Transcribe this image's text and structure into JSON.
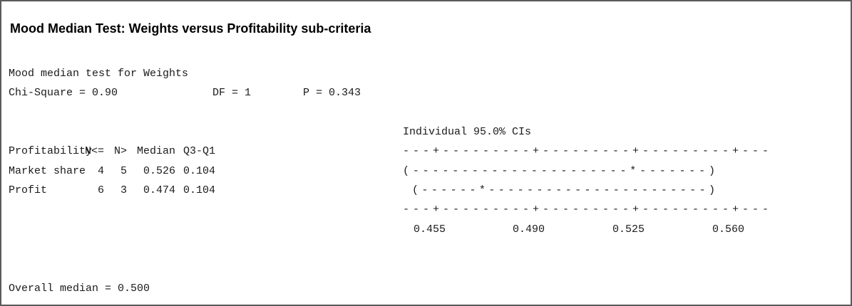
{
  "title": "Mood Median Test: Weights versus Profitability sub-criteria",
  "test": "Mood median test for Weights",
  "statistics": [
    "Chi-Square = 0.90",
    "DF = 1",
    "P = 0.343"
  ],
  "ci_heading": "Individual 95.0% CIs",
  "table": {
    "columns": [
      "Profitability",
      "N<=",
      "N>",
      "Median",
      "Q3-Q1"
    ],
    "rows": [
      [
        "Market share",
        "4",
        "5",
        "0.526",
        "0.104"
      ],
      [
        "Profit",
        "6",
        "3",
        "0.474",
        "0.104"
      ]
    ]
  },
  "ci_plot": {
    "axis_top": "---+---------+---------+---------+---",
    "rows": [
      "(----------------------*-------)",
      "(------*-----------------------)"
    ],
    "axis_bottom": "---+---------+---------+---------+---",
    "ticks": [
      "0.455",
      "0.490",
      "0.525",
      "0.560"
    ]
  },
  "overall_median": "Overall median = 0.500"
}
